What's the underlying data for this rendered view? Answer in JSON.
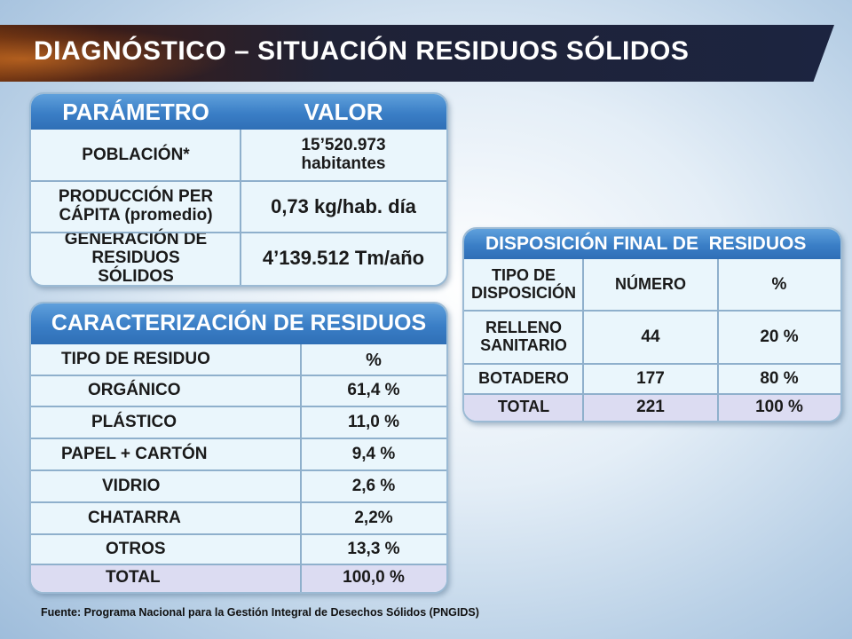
{
  "title": "DIAGNÓSTICO – SITUACIÓN RESIDUOS SÓLIDOS",
  "parametros": {
    "header_param": "PARÁMETRO",
    "header_valor": "VALOR",
    "rows": [
      {
        "param": "POBLACIÓN*",
        "valor": "15’520.973 habitantes"
      },
      {
        "param": "PRODUCCIÓN PER CÁPITA (promedio)",
        "valor": "0,73 kg/hab. día"
      },
      {
        "param": "GENERACIÓN DE RESIDUOS SÓLIDOS",
        "valor": "4’139.512 Tm/año"
      }
    ]
  },
  "caracterizacion": {
    "title": "CARACTERIZACIÓN DE RESIDUOS",
    "col_tipo": "TIPO DE RESIDUO",
    "col_pct": "%",
    "rows": [
      {
        "tipo": "ORGÁNICO",
        "pct": "61,4 %"
      },
      {
        "tipo": "PLÁSTICO",
        "pct": "11,0 %"
      },
      {
        "tipo": "PAPEL + CARTÓN",
        "pct": "9,4 %"
      },
      {
        "tipo": "VIDRIO",
        "pct": "2,6 %"
      },
      {
        "tipo": "CHATARRA",
        "pct": "2,2%"
      },
      {
        "tipo": "OTROS",
        "pct": "13,3 %"
      }
    ],
    "total_label": "TOTAL",
    "total_pct": "100,0 %"
  },
  "disposicion": {
    "title": "DISPOSICIÓN FINAL DE  RESIDUOS",
    "col_tipo": "TIPO DE DISPOSICIÓN",
    "col_numero": "NÚMERO",
    "col_pct": "%",
    "rows": [
      {
        "tipo": "RELLENO SANITARIO",
        "numero": "44",
        "pct": "20 %"
      },
      {
        "tipo": "BOTADERO",
        "numero": "177",
        "pct": "80 %"
      }
    ],
    "total_label": "TOTAL",
    "total_numero": "221",
    "total_pct": "100 %"
  },
  "footer": "Fuente: Programa Nacional para la Gestión Integral de Desechos Sólidos (PNGIDS)",
  "colors": {
    "header_blue": "#3a7ec6",
    "panel_bg": "#eaf6fc",
    "total_row": "#dcdcf2",
    "banner_dark": "#1f2236"
  }
}
